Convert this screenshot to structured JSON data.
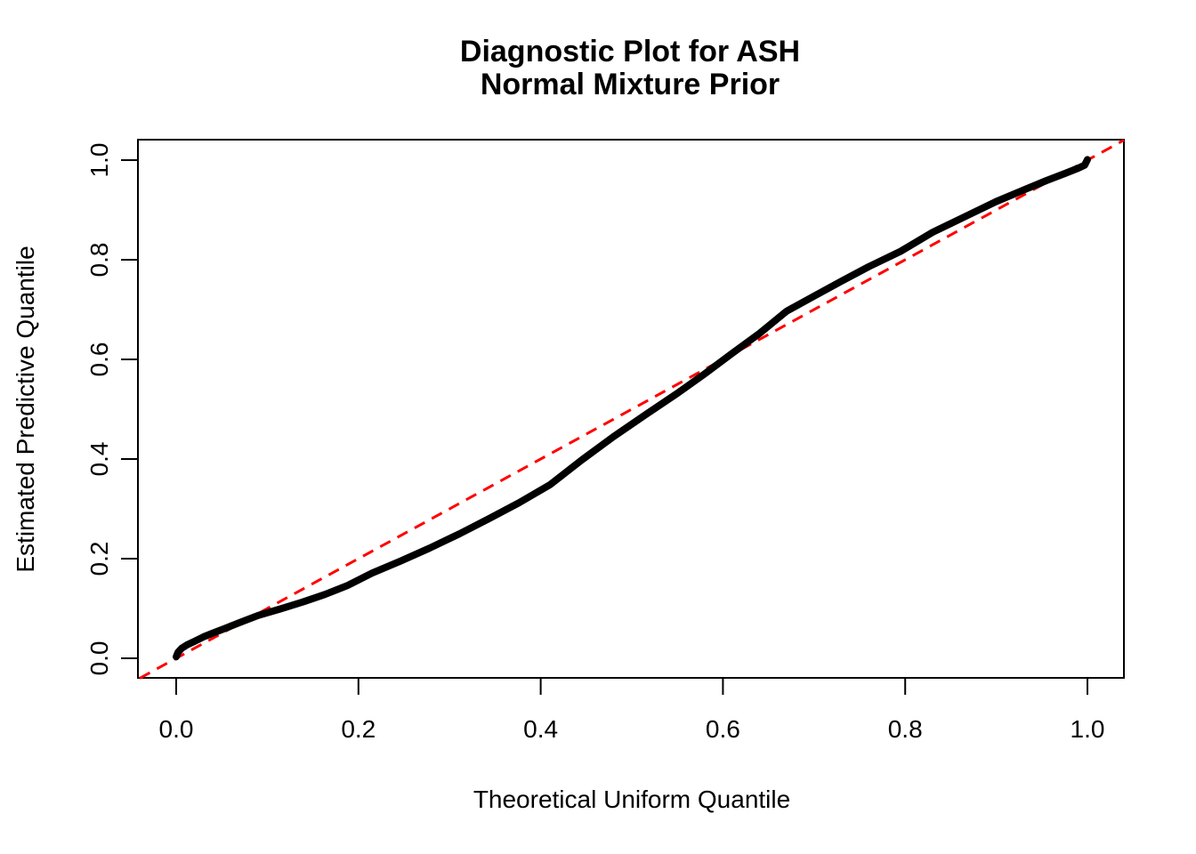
{
  "figure": {
    "background_color": "#FFFFFF",
    "box_color": "#000000"
  },
  "chart_data": {
    "type": "line",
    "title_line1": "Diagnostic Plot for ASH",
    "title_line2": "Normal Mixture Prior",
    "xlabel": "Theoretical Uniform Quantile",
    "ylabel": "Estimated Predictive Quantile",
    "xlim": [
      -0.04,
      1.04
    ],
    "ylim": [
      -0.04,
      1.04
    ],
    "grid": false,
    "legend_position": "none",
    "x_tick_values": [
      0.0,
      0.2,
      0.4,
      0.6,
      0.8,
      1.0
    ],
    "x_tick_labels": [
      "0.0",
      "0.2",
      "0.4",
      "0.6",
      "0.8",
      "1.0"
    ],
    "y_tick_values": [
      0.0,
      0.2,
      0.4,
      0.6,
      0.8,
      1.0
    ],
    "y_tick_labels": [
      "0.0",
      "0.2",
      "0.4",
      "0.6",
      "0.8",
      "1.0"
    ],
    "series": [
      {
        "name": "estimated-predictive-quantile-curve",
        "type": "scatter-curve",
        "color": "#000000",
        "line_width": 8,
        "points": [
          [
            0.0,
            0.003
          ],
          [
            0.002,
            0.012
          ],
          [
            0.006,
            0.02
          ],
          [
            0.012,
            0.027
          ],
          [
            0.02,
            0.034
          ],
          [
            0.03,
            0.043
          ],
          [
            0.041,
            0.051
          ],
          [
            0.055,
            0.061
          ],
          [
            0.07,
            0.072
          ],
          [
            0.09,
            0.086
          ],
          [
            0.114,
            0.099
          ],
          [
            0.139,
            0.113
          ],
          [
            0.163,
            0.128
          ],
          [
            0.188,
            0.146
          ],
          [
            0.215,
            0.171
          ],
          [
            0.246,
            0.195
          ],
          [
            0.278,
            0.221
          ],
          [
            0.311,
            0.25
          ],
          [
            0.343,
            0.28
          ],
          [
            0.376,
            0.312
          ],
          [
            0.41,
            0.348
          ],
          [
            0.445,
            0.398
          ],
          [
            0.48,
            0.445
          ],
          [
            0.515,
            0.489
          ],
          [
            0.55,
            0.532
          ],
          [
            0.58,
            0.571
          ],
          [
            0.61,
            0.612
          ],
          [
            0.64,
            0.652
          ],
          [
            0.67,
            0.697
          ],
          [
            0.7,
            0.727
          ],
          [
            0.73,
            0.757
          ],
          [
            0.76,
            0.786
          ],
          [
            0.795,
            0.817
          ],
          [
            0.83,
            0.855
          ],
          [
            0.865,
            0.886
          ],
          [
            0.9,
            0.917
          ],
          [
            0.93,
            0.94
          ],
          [
            0.955,
            0.959
          ],
          [
            0.975,
            0.973
          ],
          [
            0.99,
            0.984
          ],
          [
            0.997,
            0.99
          ],
          [
            1.0,
            1.001
          ]
        ]
      },
      {
        "name": "identity-reference-line",
        "type": "line",
        "style": "dashed",
        "color": "#FF0000",
        "line_width": 3,
        "dash_pattern": [
          13,
          9
        ],
        "from": [
          -0.04,
          -0.04
        ],
        "to": [
          1.04,
          1.04
        ]
      }
    ]
  }
}
